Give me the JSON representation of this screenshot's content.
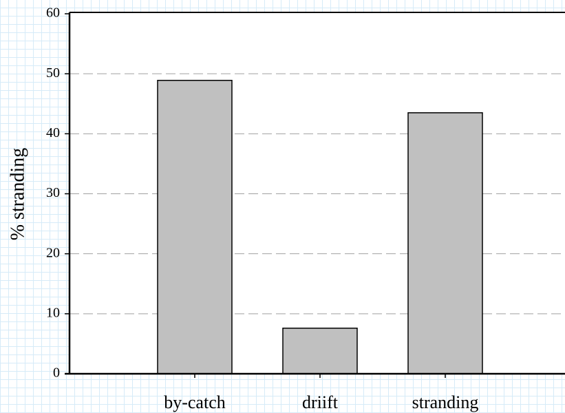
{
  "chart_data": {
    "type": "bar",
    "y_label": "% stranding",
    "categories": [
      "by-catch",
      "driift",
      "stranding"
    ],
    "values": [
      48.9,
      7.6,
      43.5
    ],
    "color": "#c0c0c0",
    "ylim": [
      0,
      60
    ],
    "yticks": [
      0,
      10,
      20,
      30,
      40,
      50,
      60
    ],
    "grid": true
  }
}
